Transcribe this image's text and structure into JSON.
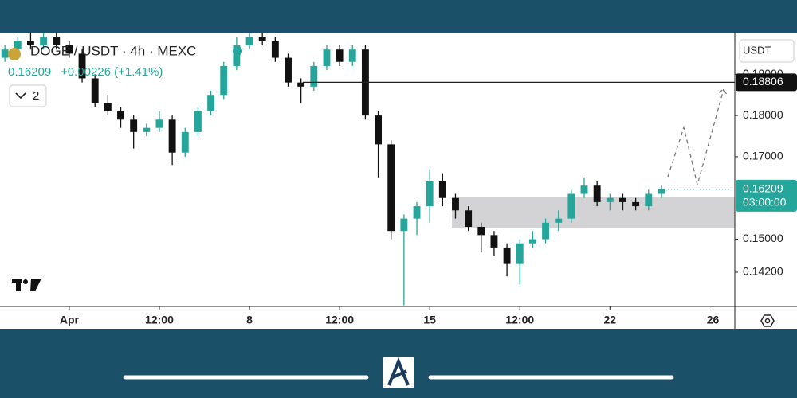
{
  "chart_data": {
    "type": "candlestick",
    "title": "DOGE / USDT · 4h · MEXC",
    "last_price": 0.16209,
    "change": "+0.00226 (+1.41%)",
    "indicator_count": 2,
    "currency": "USDT",
    "countdown": "03:00:00",
    "hline": {
      "value": 0.18806,
      "label": "0.18806"
    },
    "up_color": "#26a69a",
    "down_color": "#111111",
    "xlim": [
      -1.69,
      26.85
    ],
    "ylim": [
      0.1337,
      0.1999
    ],
    "xticks": [
      {
        "value": 1,
        "label": "Apr"
      },
      {
        "value": 4.5,
        "label": "12:00"
      },
      8,
      {
        "value": 11.5,
        "label": "12:00"
      },
      15,
      {
        "value": 18.5,
        "label": "12:00"
      },
      22,
      26
    ],
    "yticks": [
      {
        "value": 0.142,
        "label": "0.14200"
      },
      {
        "value": 0.15,
        "label": "0.15000"
      },
      {
        "value": 0.17,
        "label": "0.17000"
      },
      {
        "value": 0.18,
        "label": "0.18000"
      },
      {
        "value": 0.19,
        "label": "0.19000"
      }
    ],
    "x": [
      -1.5,
      -1,
      -0.5,
      0,
      0.5,
      1,
      1.5,
      2,
      2.5,
      3,
      3.5,
      4,
      4.5,
      5,
      5.5,
      6,
      6.5,
      7,
      7.5,
      8,
      8.5,
      9,
      9.5,
      10,
      10.5,
      11,
      11.5,
      12,
      12.5,
      13,
      13.5,
      14,
      14.5,
      15,
      15.5,
      16,
      16.5,
      17,
      17.5,
      18,
      18.5,
      19,
      19.5,
      20,
      20.5,
      21,
      21.5,
      22,
      22.5,
      23,
      23.5,
      24
    ],
    "open": [
      0.194,
      0.196,
      0.198,
      0.197,
      0.199,
      0.197,
      0.195,
      0.189,
      0.183,
      0.181,
      0.179,
      0.176,
      0.177,
      0.179,
      0.171,
      0.176,
      0.181,
      0.185,
      0.192,
      0.197,
      0.199,
      0.198,
      0.194,
      0.188,
      0.187,
      0.192,
      0.196,
      0.193,
      0.196,
      0.18,
      0.173,
      0.152,
      0.155,
      0.158,
      0.164,
      0.16,
      0.157,
      0.153,
      0.151,
      0.148,
      0.144,
      0.149,
      0.15,
      0.154,
      0.155,
      0.161,
      0.163,
      0.159,
      0.16,
      0.159,
      0.158,
      0.161
    ],
    "high": [
      0.197,
      0.199,
      0.2,
      0.2,
      0.2,
      0.198,
      0.196,
      0.19,
      0.185,
      0.182,
      0.18,
      0.178,
      0.181,
      0.18,
      0.177,
      0.182,
      0.186,
      0.193,
      0.199,
      0.2,
      0.2,
      0.199,
      0.195,
      0.189,
      0.193,
      0.197,
      0.197,
      0.197,
      0.197,
      0.181,
      0.174,
      0.156,
      0.159,
      0.167,
      0.166,
      0.161,
      0.158,
      0.154,
      0.152,
      0.149,
      0.15,
      0.152,
      0.155,
      0.157,
      0.162,
      0.165,
      0.164,
      0.161,
      0.161,
      0.16,
      0.162,
      0.163
    ],
    "low": [
      0.193,
      0.195,
      0.196,
      0.196,
      0.196,
      0.194,
      0.188,
      0.182,
      0.18,
      0.177,
      0.172,
      0.175,
      0.176,
      0.168,
      0.17,
      0.175,
      0.18,
      0.184,
      0.191,
      0.196,
      0.197,
      0.193,
      0.187,
      0.183,
      0.186,
      0.191,
      0.192,
      0.192,
      0.179,
      0.165,
      0.15,
      0.134,
      0.151,
      0.154,
      0.158,
      0.155,
      0.152,
      0.147,
      0.146,
      0.141,
      0.139,
      0.148,
      0.149,
      0.152,
      0.154,
      0.16,
      0.158,
      0.157,
      0.157,
      0.157,
      0.157,
      0.16
    ],
    "close": [
      0.196,
      0.198,
      0.197,
      0.199,
      0.197,
      0.195,
      0.189,
      0.183,
      0.181,
      0.179,
      0.176,
      0.177,
      0.179,
      0.171,
      0.176,
      0.181,
      0.185,
      0.192,
      0.197,
      0.199,
      0.198,
      0.194,
      0.188,
      0.187,
      0.192,
      0.196,
      0.193,
      0.196,
      0.18,
      0.173,
      0.152,
      0.155,
      0.158,
      0.164,
      0.16,
      0.157,
      0.153,
      0.151,
      0.148,
      0.144,
      0.149,
      0.15,
      0.154,
      0.155,
      0.161,
      0.163,
      0.159,
      0.16,
      0.159,
      0.158,
      0.161,
      0.16209
    ]
  }
}
